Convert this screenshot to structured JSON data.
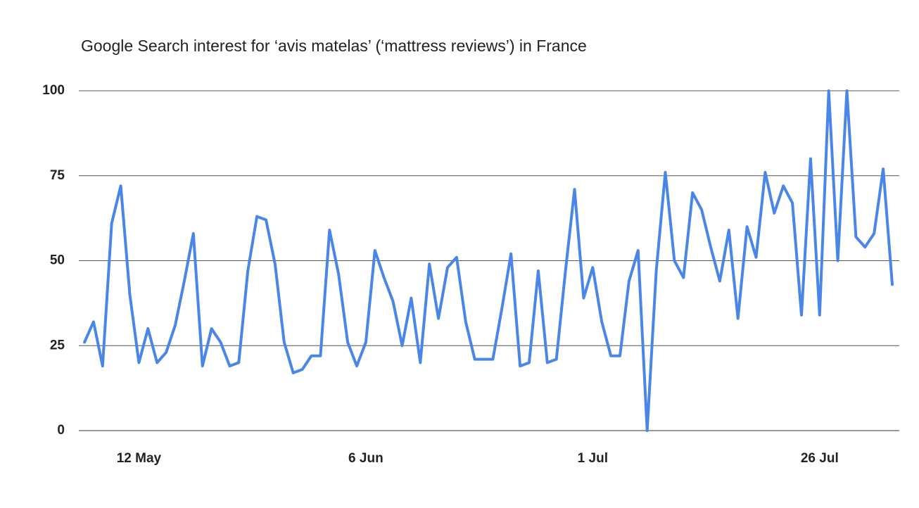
{
  "chart_data": {
    "type": "line",
    "title": "Google Search interest for ‘avis matelas’ (‘mattress reviews’) in France",
    "categories": [
      null,
      null,
      null,
      null,
      null,
      null,
      "12 May",
      null,
      null,
      null,
      null,
      null,
      null,
      null,
      null,
      null,
      null,
      null,
      null,
      null,
      null,
      null,
      null,
      null,
      null,
      null,
      null,
      null,
      null,
      null,
      null,
      "6 Jun",
      null,
      null,
      null,
      null,
      null,
      null,
      null,
      null,
      null,
      null,
      null,
      null,
      null,
      null,
      null,
      null,
      null,
      null,
      null,
      null,
      null,
      null,
      null,
      null,
      "1 Jul",
      null,
      null,
      null,
      null,
      null,
      null,
      null,
      null,
      null,
      null,
      null,
      null,
      null,
      null,
      null,
      null,
      null,
      null,
      null,
      null,
      null,
      null,
      null,
      null,
      "26 Jul",
      null,
      null,
      null,
      null,
      null,
      null,
      null,
      null
    ],
    "series": [
      {
        "name": "avis matelas",
        "color": "#4a86e8",
        "values": [
          26,
          32,
          19,
          61,
          72,
          40,
          20,
          30,
          20,
          23,
          31,
          44,
          58,
          19,
          30,
          26,
          19,
          20,
          47,
          63,
          62,
          49,
          26,
          17,
          18,
          22,
          22,
          59,
          46,
          26,
          19,
          26,
          53,
          45,
          38,
          25,
          39,
          20,
          49,
          33,
          48,
          51,
          32,
          21,
          21,
          21,
          36,
          52,
          19,
          20,
          47,
          20,
          21,
          47,
          71,
          39,
          48,
          32,
          22,
          22,
          44,
          53,
          0,
          47,
          76,
          50,
          45,
          70,
          65,
          54,
          44,
          59,
          33,
          60,
          51,
          76,
          64,
          72,
          67,
          34,
          80,
          34,
          100,
          50,
          100,
          57,
          54,
          58,
          77,
          43
        ]
      }
    ],
    "ylim": [
      0,
      100
    ],
    "yticks": [
      0,
      25,
      50,
      75,
      100
    ],
    "grid": true
  }
}
